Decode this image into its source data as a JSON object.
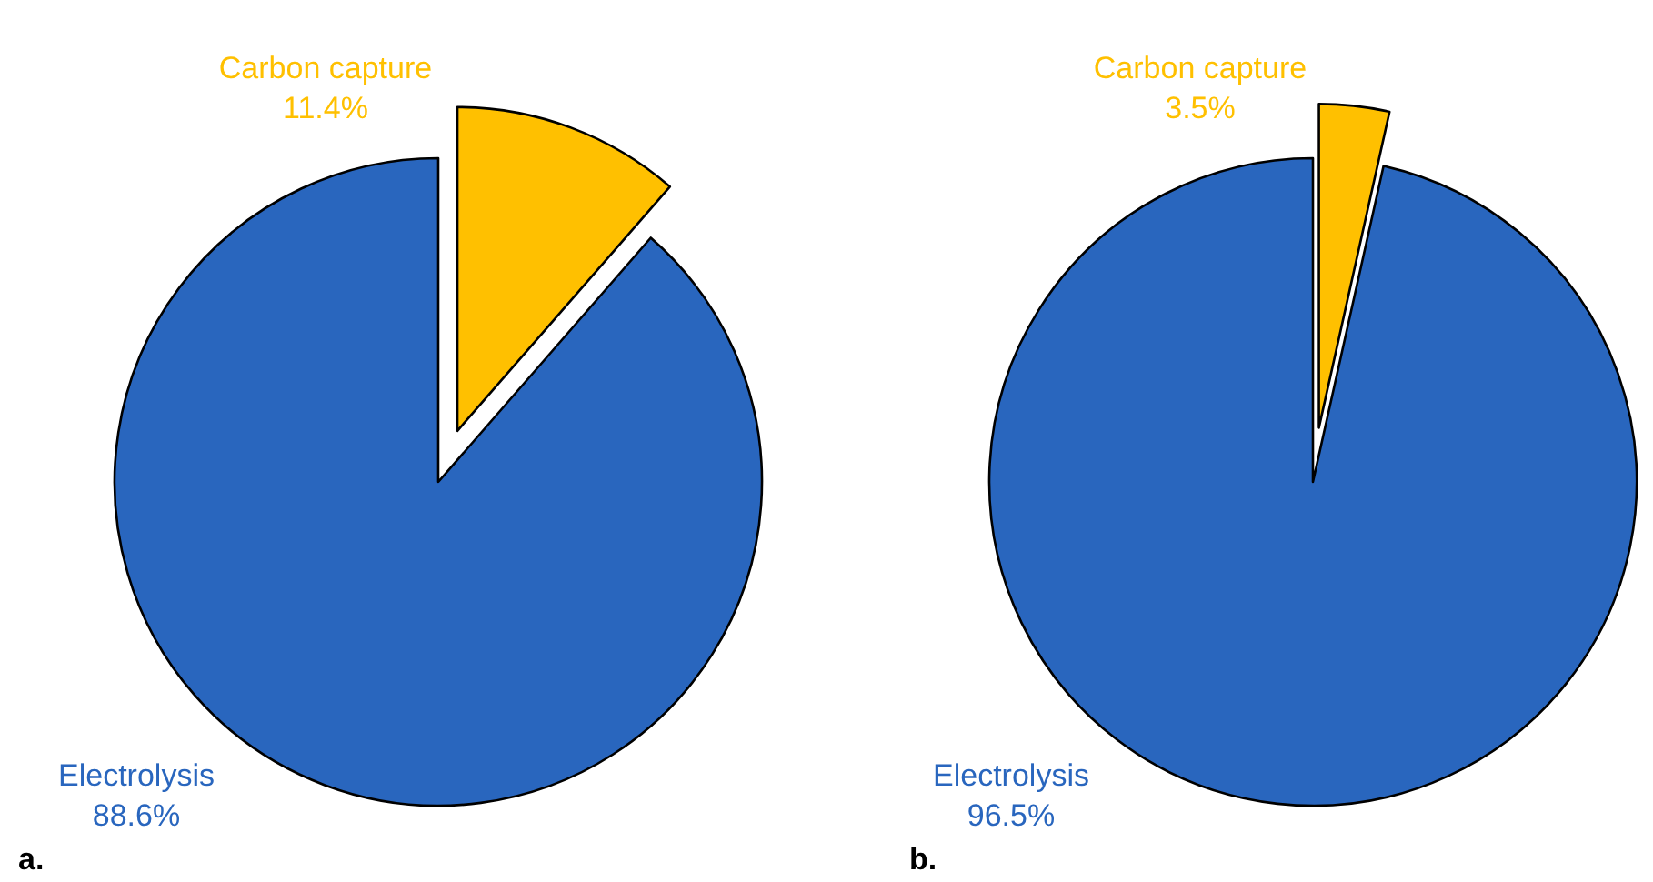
{
  "chart_data": [
    {
      "type": "pie",
      "categories": [
        "Carbon capture",
        "Electrolysis"
      ],
      "values": [
        11.4,
        88.6
      ],
      "colors": [
        "#ffc000",
        "#2966be"
      ],
      "value_labels": [
        "11.4%",
        "88.6%"
      ],
      "annotations": [
        "a."
      ]
    },
    {
      "type": "pie",
      "categories": [
        "Carbon capture",
        "Electrolysis"
      ],
      "values": [
        3.5,
        96.5
      ],
      "colors": [
        "#ffc000",
        "#2966be"
      ],
      "value_labels": [
        "3.5%",
        "96.5%"
      ],
      "annotations": [
        "b."
      ]
    }
  ]
}
